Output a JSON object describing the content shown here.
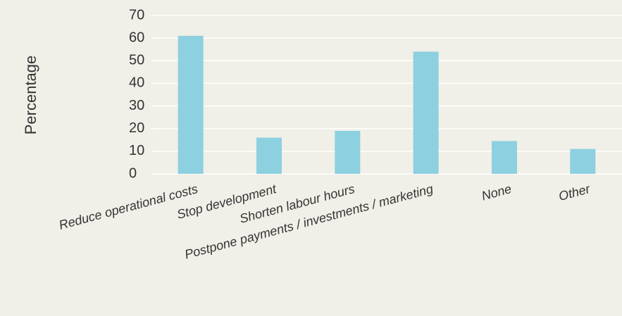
{
  "chart_data": {
    "type": "bar",
    "y_label": "Percentage",
    "categories": [
      "Reduce operational costs",
      "Stop development",
      "Shorten labour hours",
      "Postpone payments / investments / marketing",
      "None",
      "Other"
    ],
    "values": [
      61,
      16,
      19,
      54,
      14.5,
      11
    ],
    "color": "#8dd0e0",
    "ylim": [
      0,
      70
    ],
    "yticks": [
      0,
      10,
      20,
      30,
      40,
      50,
      60,
      70
    ],
    "grid": true
  }
}
